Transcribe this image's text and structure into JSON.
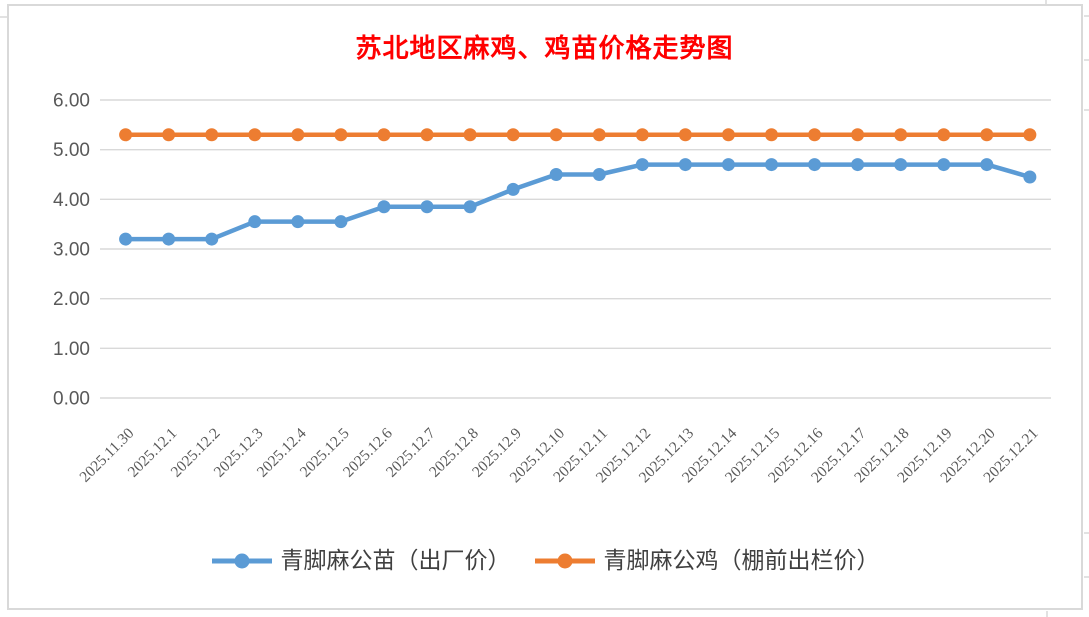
{
  "chart": {
    "title_color": "#FF0000",
    "frame_border_color": "#D9D9D9",
    "background_color": "#FFFFFF"
  },
  "chart_data": {
    "type": "line",
    "title": "苏北地区麻鸡、鸡苗价格走势图",
    "title_color": "#FF0000",
    "categories": [
      "2025.11.30",
      "2025.12.1",
      "2025.12.2",
      "2025.12.3",
      "2025.12.4",
      "2025.12.5",
      "2025.12.6",
      "2025.12.7",
      "2025.12.8",
      "2025.12.9",
      "2025.12.10",
      "2025.12.11",
      "2025.12.12",
      "2025.12.13",
      "2025.12.14",
      "2025.12.15",
      "2025.12.16",
      "2025.12.17",
      "2025.12.18",
      "2025.12.19",
      "2025.12.20",
      "2025.12.21"
    ],
    "series": [
      {
        "name": "青脚麻公苗（出厂价）",
        "color": "#5B9BD5",
        "values": [
          3.2,
          3.2,
          3.2,
          3.55,
          3.55,
          3.55,
          3.85,
          3.85,
          3.85,
          4.2,
          4.5,
          4.5,
          4.7,
          4.7,
          4.7,
          4.7,
          4.7,
          4.7,
          4.7,
          4.7,
          4.7,
          4.45
        ]
      },
      {
        "name": "青脚麻公鸡（棚前出栏价）",
        "color": "#ED7D31",
        "values": [
          5.3,
          5.3,
          5.3,
          5.3,
          5.3,
          5.3,
          5.3,
          5.3,
          5.3,
          5.3,
          5.3,
          5.3,
          5.3,
          5.3,
          5.3,
          5.3,
          5.3,
          5.3,
          5.3,
          5.3,
          5.3,
          5.3
        ]
      }
    ],
    "xlabel": "",
    "ylabel": "",
    "ylim": [
      0,
      6
    ],
    "ytick_step": 1,
    "ytick_labels": [
      "0.00",
      "1.00",
      "2.00",
      "3.00",
      "4.00",
      "5.00",
      "6.00"
    ],
    "grid": "horizontal",
    "grid_color": "#D9D9D9",
    "axis_label_color": "#595959",
    "legend_position": "bottom",
    "marker_style": "circle"
  }
}
